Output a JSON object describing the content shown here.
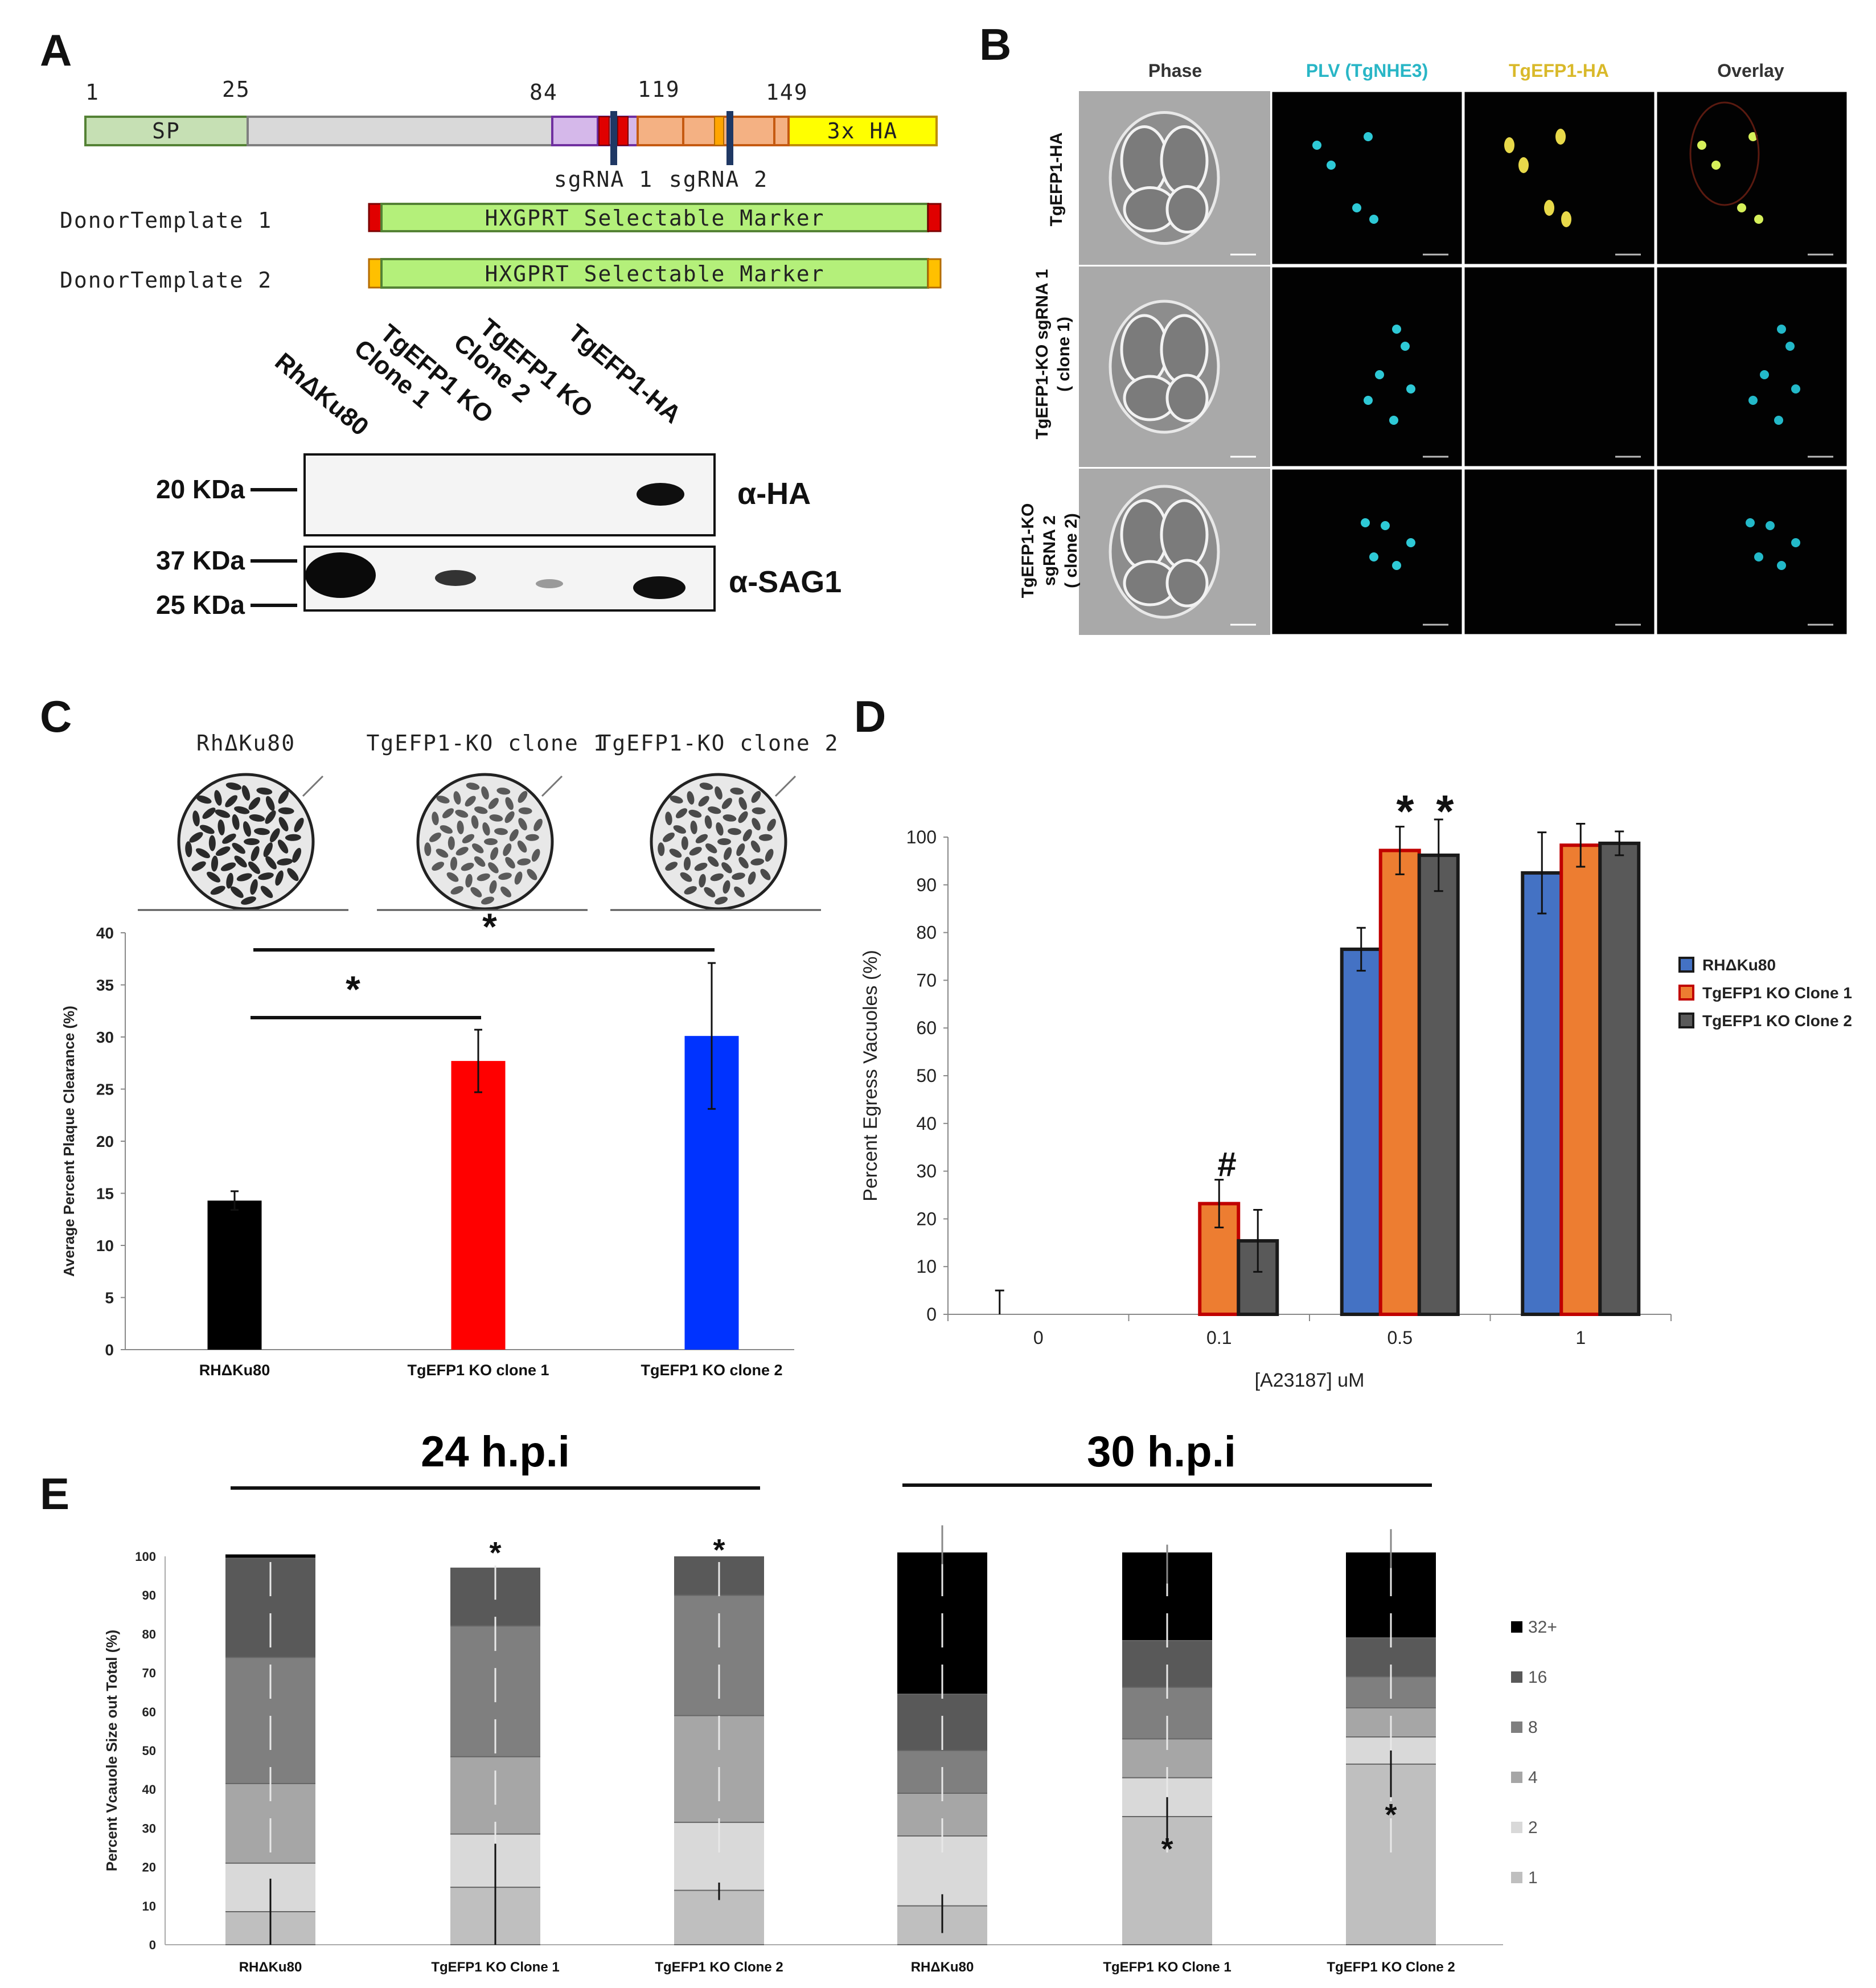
{
  "figure": {
    "panel_labels": [
      "A",
      "B",
      "C",
      "D",
      "E"
    ]
  },
  "panelA": {
    "positions": [
      "1",
      "25",
      "84",
      "119",
      "149"
    ],
    "domains": {
      "sp": "SP",
      "ha": "3x HA"
    },
    "sgrna": [
      "sgRNA 1",
      "sgRNA 2"
    ],
    "donors": [
      {
        "label": "DonorTemplate 1",
        "marker": "HXGPRT Selectable Marker"
      },
      {
        "label": "DonorTemplate 2",
        "marker": "HXGPRT Selectable Marker"
      }
    ],
    "blot": {
      "lanes": [
        "RhΔKu80",
        "TgEFP1 KO Clone 1",
        "TgEFP1 KO Clone 2",
        "TgEFP1-HA"
      ],
      "lane_lines": [
        [
          "RhΔKu80"
        ],
        [
          "TgEFP1 KO",
          "Clone 1"
        ],
        [
          "TgEFP1 KO",
          "Clone 2"
        ],
        [
          "TgEFP1-HA"
        ]
      ],
      "markers": [
        "20 KDa",
        "37 KDa",
        "25 KDa"
      ],
      "antibodies": [
        "α-HA",
        "α-SAG1"
      ]
    }
  },
  "panelB": {
    "columns": [
      "Phase",
      "PLV (TgNHE3)",
      "TgEFP1-HA",
      "Overlay"
    ],
    "column_colors": [
      "#333333",
      "#29b6c6",
      "#d9b92a",
      "#333333"
    ],
    "rows": [
      [
        "TgEFP1-HA"
      ],
      [
        "TgEFP1-KO sgRNA 1",
        "( clone 1)"
      ],
      [
        "TgEFP1-KO",
        "sgRNA 2",
        "( clone 2)"
      ]
    ]
  },
  "panelC": {
    "plate_labels": [
      "RhΔKu80",
      "TgEFP1-KO clone 1",
      "TgEFP1-KO clone 2"
    ],
    "significance": [
      "*",
      "*"
    ],
    "chart_data": {
      "type": "bar",
      "categories": [
        "RHΔKu80",
        "TgEFP1 KO clone 1",
        "TgEFP1 KO clone 2"
      ],
      "values": [
        14.3,
        27.7,
        30.1
      ],
      "errors": [
        0.9,
        3.0,
        7.0
      ],
      "colors": [
        "#000000",
        "#ff0000",
        "#0033ff"
      ],
      "ylabel": "Average Percent Plaque Clearance (%)",
      "ylim": [
        0,
        40
      ],
      "yticks": [
        0,
        5,
        10,
        15,
        20,
        25,
        30,
        35,
        40
      ]
    }
  },
  "panelD": {
    "significance": [
      "#",
      "*",
      "*"
    ],
    "chart_data": {
      "type": "bar",
      "categories": [
        "0",
        "0.1",
        "0.5",
        "1"
      ],
      "series": [
        {
          "name": "RHΔKu80",
          "color": "#4472c4",
          "edge": "#1a1a1a",
          "values": [
            0,
            0,
            76.5,
            92.5
          ],
          "errors": [
            5,
            0,
            4.5,
            8.5
          ]
        },
        {
          "name": "TgEFP1 KO Clone 1",
          "color": "#ed7d31",
          "edge": "#c00000",
          "values": [
            0,
            23.2,
            97.2,
            98.3
          ],
          "errors": [
            0,
            5.0,
            5.0,
            4.5
          ]
        },
        {
          "name": "TgEFP1 KO Clone 2",
          "color": "#595959",
          "edge": "#1a1a1a",
          "values": [
            0,
            15.4,
            96.2,
            98.7
          ],
          "errors": [
            0,
            6.5,
            7.5,
            2.5
          ]
        }
      ],
      "xlabel": "[A23187] uM",
      "ylabel": "Percent Egress Vacuoles (%)",
      "ylim": [
        0,
        100
      ],
      "yticks": [
        0,
        10,
        20,
        30,
        40,
        50,
        60,
        70,
        80,
        90,
        100
      ]
    }
  },
  "panelE": {
    "group_titles": [
      "24 h.p.i",
      "30 h.p.i"
    ],
    "chart_data": {
      "type": "bar",
      "stacked": true,
      "categories": [
        "RHΔKu80",
        "TgEFP1 KO Clone 1",
        "TgEFP1 KO Clone 2",
        "RHΔKu80",
        "TgEFP1 KO Clone 1",
        "TgEFP1 KO Clone 2"
      ],
      "groups": [
        "24 h.p.i",
        "24 h.p.i",
        "24 h.p.i",
        "30 h.p.i",
        "30 h.p.i",
        "30 h.p.i"
      ],
      "series": [
        {
          "name": "1",
          "color": "#bfbfbf",
          "values": [
            8.5,
            14.8,
            14.0,
            10.0,
            33.0,
            46.5
          ]
        },
        {
          "name": "2",
          "color": "#d9d9d9",
          "values": [
            12.5,
            13.7,
            17.5,
            18.0,
            10.0,
            7.0
          ]
        },
        {
          "name": "4",
          "color": "#a6a6a6",
          "values": [
            20.5,
            19.9,
            27.5,
            11.0,
            10.0,
            7.5
          ]
        },
        {
          "name": "8",
          "color": "#7f7f7f",
          "values": [
            32.5,
            33.7,
            31.0,
            11.0,
            13.3,
            8.0
          ]
        },
        {
          "name": "16",
          "color": "#595959",
          "values": [
            25.5,
            15.0,
            10.0,
            14.5,
            12.0,
            10.0
          ]
        },
        {
          "name": "32+",
          "color": "#000000",
          "values": [
            1.0,
            0.0,
            0.0,
            36.5,
            22.7,
            22.0
          ]
        }
      ],
      "significance": [
        "",
        "*",
        "*",
        "",
        "*",
        "*"
      ],
      "ylabel": "Percent Vcauole Size out Total (%)",
      "ylim": [
        0,
        100
      ],
      "yticks": [
        0,
        10,
        20,
        30,
        40,
        50,
        60,
        70,
        80,
        90,
        100
      ]
    }
  }
}
